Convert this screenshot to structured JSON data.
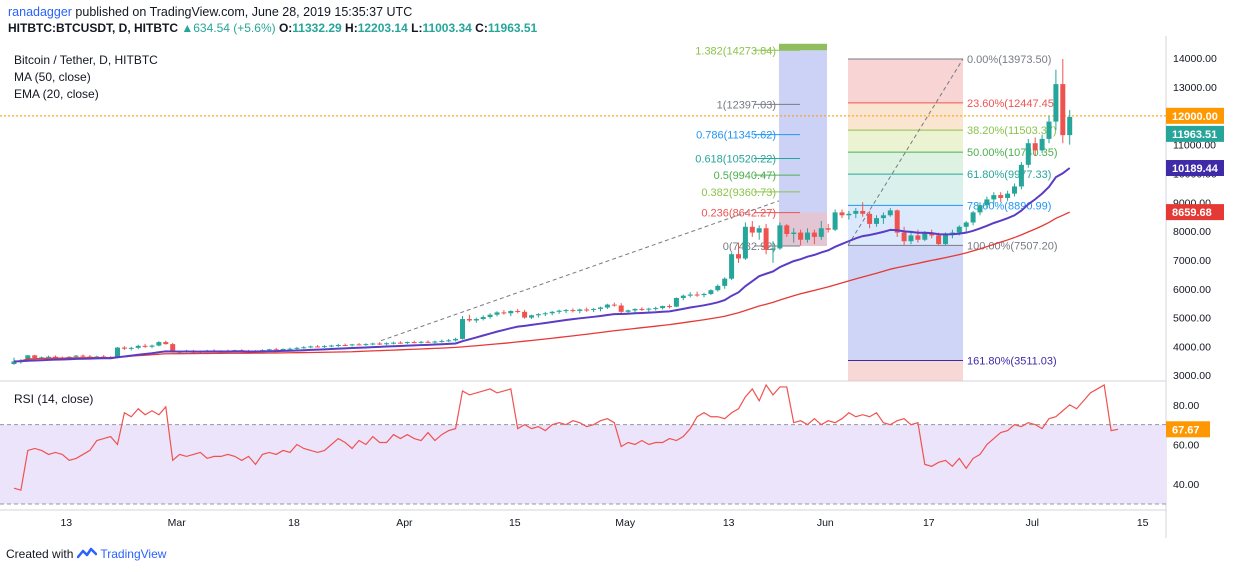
{
  "header": {
    "author": "ranadagger",
    "published": " published on TradingView.com, June 28, 2019 15:35:37 UTC",
    "symbol": "HITBTC:BTCUSDT, D, HITBTC",
    "change": "634.54 (+5.6%)",
    "o_label": "O:",
    "o_value": "11332.29",
    "h_label": "H:",
    "h_value": "12203.14",
    "l_label": "L:",
    "l_value": "11003.34",
    "c_label": "C:",
    "c_value": "11963.51"
  },
  "footer": {
    "created_with": "Created with",
    "brand": "TradingView"
  },
  "colors": {
    "up": "#26a69a",
    "down": "#ef5350",
    "ma50": "#e53935",
    "ema20": "#5b3cc4",
    "rsi": "#ef5350",
    "rsi_band": "#ece4fb",
    "price_line": "#ff9800",
    "fib_up_bg": "#b9c3f2",
    "fib_down_bg": "#f4bdbd"
  },
  "chart_data": [
    {
      "type": "candlestick",
      "title": "Bitcoin / Tether, D, HITBTC",
      "indicators": [
        "MA (50, close)",
        "EMA (20, close)"
      ],
      "x_ticks": [
        "13",
        "Mar",
        "18",
        "Apr",
        "15",
        "May",
        "13",
        "Jun",
        "17",
        "Jul",
        "15"
      ],
      "y_ticks": [
        "14000.00",
        "13000.00",
        "12000.00",
        "11000.00",
        "10000.00",
        "9000.00",
        "8000.00",
        "7000.00",
        "6000.00",
        "5000.00",
        "4000.00",
        "3000.00"
      ],
      "ylim": [
        2800,
        14700
      ],
      "price_labels": [
        {
          "text": "12000.00",
          "value": 12000,
          "color": "#ff9800"
        },
        {
          "text": "11963.51",
          "value": 11963.51,
          "color": "#26a69a"
        },
        {
          "text": "10189.44",
          "value": 10189.44,
          "color": "#3f2aa8"
        },
        {
          "text": "8659.68",
          "value": 8659.68,
          "color": "#e53935"
        }
      ],
      "ohlc": [
        [
          3390,
          3610,
          3360,
          3480
        ],
        [
          3480,
          3560,
          3400,
          3520
        ],
        [
          3520,
          3700,
          3500,
          3690
        ],
        [
          3690,
          3710,
          3570,
          3600
        ],
        [
          3600,
          3650,
          3550,
          3620
        ],
        [
          3620,
          3680,
          3580,
          3640
        ],
        [
          3640,
          3690,
          3590,
          3610
        ],
        [
          3610,
          3650,
          3560,
          3600
        ],
        [
          3600,
          3660,
          3580,
          3640
        ],
        [
          3640,
          3700,
          3600,
          3680
        ],
        [
          3680,
          3720,
          3620,
          3650
        ],
        [
          3650,
          3700,
          3600,
          3630
        ],
        [
          3630,
          3680,
          3590,
          3650
        ],
        [
          3650,
          3700,
          3600,
          3620
        ],
        [
          3620,
          3660,
          3560,
          3600
        ],
        [
          3600,
          3980,
          3590,
          3960
        ],
        [
          3960,
          4010,
          3880,
          3920
        ],
        [
          3920,
          3990,
          3860,
          3950
        ],
        [
          3950,
          4060,
          3900,
          4020
        ],
        [
          4020,
          4090,
          3950,
          3990
        ],
        [
          3990,
          4060,
          3940,
          4030
        ],
        [
          4030,
          4180,
          4000,
          4150
        ],
        [
          4150,
          4200,
          4060,
          4080
        ],
        [
          4080,
          4120,
          3780,
          3790
        ],
        [
          3790,
          3860,
          3740,
          3820
        ],
        [
          3820,
          3880,
          3780,
          3850
        ],
        [
          3850,
          3880,
          3770,
          3800
        ],
        [
          3800,
          3860,
          3760,
          3830
        ],
        [
          3830,
          3880,
          3790,
          3860
        ],
        [
          3860,
          3900,
          3800,
          3820
        ],
        [
          3820,
          3870,
          3780,
          3850
        ],
        [
          3850,
          3890,
          3800,
          3830
        ],
        [
          3830,
          3880,
          3790,
          3870
        ],
        [
          3870,
          3900,
          3820,
          3840
        ],
        [
          3840,
          3880,
          3780,
          3800
        ],
        [
          3800,
          3870,
          3760,
          3850
        ],
        [
          3850,
          3900,
          3810,
          3870
        ],
        [
          3870,
          3920,
          3830,
          3900
        ],
        [
          3900,
          3950,
          3860,
          3880
        ],
        [
          3880,
          3930,
          3850,
          3910
        ],
        [
          3910,
          3960,
          3870,
          3920
        ],
        [
          3920,
          3980,
          3890,
          3950
        ],
        [
          3950,
          4010,
          3920,
          3970
        ],
        [
          3970,
          4030,
          3940,
          4000
        ],
        [
          4000,
          4050,
          3960,
          3990
        ],
        [
          3990,
          4040,
          3950,
          4010
        ],
        [
          4010,
          4060,
          3970,
          4030
        ],
        [
          4030,
          4090,
          3980,
          4050
        ],
        [
          4050,
          4100,
          4010,
          4040
        ],
        [
          4040,
          4090,
          4000,
          4070
        ],
        [
          4070,
          4120,
          4030,
          4060
        ],
        [
          4060,
          4110,
          4020,
          4080
        ],
        [
          4080,
          4130,
          4040,
          4100
        ],
        [
          4100,
          4150,
          4050,
          4090
        ],
        [
          4090,
          4140,
          4040,
          4110
        ],
        [
          4110,
          4160,
          4070,
          4130
        ],
        [
          4130,
          4180,
          4090,
          4120
        ],
        [
          4120,
          4170,
          4080,
          4150
        ],
        [
          4150,
          4200,
          4110,
          4140
        ],
        [
          4140,
          4190,
          4100,
          4160
        ],
        [
          4160,
          4210,
          4120,
          4150
        ],
        [
          4150,
          4200,
          4110,
          4170
        ],
        [
          4170,
          4240,
          4130,
          4190
        ],
        [
          4190,
          4260,
          4150,
          4210
        ],
        [
          4210,
          4300,
          4170,
          4260
        ],
        [
          4260,
          5050,
          4240,
          4950
        ],
        [
          4950,
          5100,
          4850,
          4900
        ],
        [
          4900,
          5000,
          4820,
          4950
        ],
        [
          4950,
          5080,
          4900,
          5020
        ],
        [
          5020,
          5150,
          4960,
          5100
        ],
        [
          5100,
          5220,
          5040,
          5180
        ],
        [
          5180,
          5260,
          5100,
          5150
        ],
        [
          5150,
          5250,
          5050,
          5230
        ],
        [
          5230,
          5300,
          5150,
          5200
        ],
        [
          5200,
          5270,
          4960,
          5000
        ],
        [
          5000,
          5100,
          4950,
          5080
        ],
        [
          5080,
          5150,
          5000,
          5120
        ],
        [
          5120,
          5200,
          5050,
          5150
        ],
        [
          5150,
          5230,
          5080,
          5200
        ],
        [
          5200,
          5280,
          5130,
          5240
        ],
        [
          5240,
          5300,
          5160,
          5260
        ],
        [
          5260,
          5320,
          5180,
          5230
        ],
        [
          5230,
          5310,
          5150,
          5280
        ],
        [
          5280,
          5350,
          5200,
          5270
        ],
        [
          5270,
          5330,
          5190,
          5300
        ],
        [
          5300,
          5380,
          5220,
          5350
        ],
        [
          5350,
          5480,
          5300,
          5450
        ],
        [
          5450,
          5520,
          5380,
          5420
        ],
        [
          5420,
          5500,
          5150,
          5200
        ],
        [
          5200,
          5280,
          5120,
          5250
        ],
        [
          5250,
          5320,
          5180,
          5300
        ],
        [
          5300,
          5360,
          5230,
          5280
        ],
        [
          5280,
          5340,
          5200,
          5310
        ],
        [
          5310,
          5380,
          5240,
          5330
        ],
        [
          5330,
          5420,
          5280,
          5400
        ],
        [
          5400,
          5460,
          5320,
          5380
        ],
        [
          5380,
          5700,
          5360,
          5680
        ],
        [
          5680,
          5800,
          5600,
          5760
        ],
        [
          5760,
          5880,
          5700,
          5800
        ],
        [
          5800,
          5900,
          5720,
          5780
        ],
        [
          5780,
          5860,
          5700,
          5820
        ],
        [
          5820,
          5980,
          5780,
          5950
        ],
        [
          5950,
          6150,
          5900,
          6100
        ],
        [
          6100,
          6400,
          6000,
          6350
        ],
        [
          6350,
          7250,
          6300,
          7200
        ],
        [
          7200,
          7600,
          6900,
          7050
        ],
        [
          7050,
          8300,
          7000,
          8150
        ],
        [
          8150,
          8350,
          7800,
          7950
        ],
        [
          7950,
          8200,
          7700,
          8100
        ],
        [
          8100,
          8250,
          7200,
          7350
        ],
        [
          7350,
          7650,
          6900,
          7400
        ],
        [
          7400,
          8300,
          7350,
          8200
        ],
        [
          8200,
          8250,
          7800,
          7900
        ],
        [
          7900,
          8100,
          7600,
          7950
        ],
        [
          7950,
          8050,
          7500,
          7700
        ],
        [
          7700,
          8100,
          7600,
          7950
        ],
        [
          7950,
          8050,
          7550,
          7800
        ],
        [
          7800,
          8350,
          7700,
          8100
        ],
        [
          8100,
          8250,
          7950,
          8050
        ],
        [
          8050,
          8750,
          8000,
          8650
        ],
        [
          8650,
          8750,
          8450,
          8550
        ],
        [
          8550,
          8700,
          8400,
          8600
        ],
        [
          8600,
          8800,
          8450,
          8700
        ],
        [
          8700,
          9000,
          8500,
          8600
        ],
        [
          8600,
          8700,
          8100,
          8250
        ],
        [
          8250,
          8550,
          8150,
          8450
        ],
        [
          8450,
          8650,
          8250,
          8550
        ],
        [
          8550,
          8800,
          8500,
          8720
        ],
        [
          8720,
          8750,
          7800,
          7950
        ],
        [
          7950,
          8150,
          7500,
          7650
        ],
        [
          7650,
          7950,
          7550,
          7850
        ],
        [
          7850,
          8050,
          7600,
          7700
        ],
        [
          7700,
          8000,
          7650,
          7950
        ],
        [
          7950,
          8050,
          7750,
          7850
        ],
        [
          7850,
          7950,
          7500,
          7550
        ],
        [
          7550,
          7950,
          7500,
          7900
        ],
        [
          7900,
          8050,
          7750,
          7950
        ],
        [
          7950,
          8200,
          7850,
          8150
        ],
        [
          8150,
          8350,
          7950,
          8300
        ],
        [
          8300,
          8700,
          8200,
          8650
        ],
        [
          8650,
          9000,
          8550,
          8900
        ],
        [
          8900,
          9200,
          8800,
          9100
        ],
        [
          9100,
          9350,
          8950,
          9250
        ],
        [
          9250,
          9350,
          9000,
          9150
        ],
        [
          9150,
          9400,
          9050,
          9300
        ],
        [
          9300,
          9650,
          9200,
          9550
        ],
        [
          9550,
          10400,
          9450,
          10300
        ],
        [
          10300,
          11200,
          10200,
          11050
        ],
        [
          11050,
          11250,
          10600,
          10800
        ],
        [
          10800,
          11350,
          10700,
          11200
        ],
        [
          11200,
          12000,
          11050,
          11800
        ],
        [
          11800,
          13600,
          11500,
          13100
        ],
        [
          13100,
          13970,
          11050,
          11330
        ],
        [
          11330,
          12200,
          11000,
          11963.51
        ]
      ],
      "ma50_end": 8659.68,
      "ema20_end": 10189.44,
      "fib_left": {
        "levels": [
          {
            "label": "1.382(14273.84)",
            "value": 14273.84,
            "color": "#8bc34a"
          },
          {
            "label": "1(12397.03)",
            "value": 12397.03,
            "color": "#787b86"
          },
          {
            "label": "0.786(11345.62)",
            "value": 11345.62,
            "color": "#2196f3"
          },
          {
            "label": "0.618(10520.22)",
            "value": 10520.22,
            "color": "#26a69a"
          },
          {
            "label": "0.5(9940.47)",
            "value": 9940.47,
            "color": "#4caf50"
          },
          {
            "label": "0.382(9360.73)",
            "value": 9360.73,
            "color": "#8bc34a"
          },
          {
            "label": "0.236(8642.27)",
            "value": 8642.27,
            "color": "#ef5350"
          },
          {
            "label": "0(7482.92)",
            "value": 7482.92,
            "color": "#787b86"
          }
        ]
      },
      "fib_right": {
        "levels": [
          {
            "label": "0.00%(13973.50)",
            "value": 13973.5,
            "color": "#787b86"
          },
          {
            "label": "23.60%(12447.45)",
            "value": 12447.45,
            "color": "#ef5350"
          },
          {
            "label": "38.20%(11503.37)",
            "value": 11503.37,
            "color": "#8bc34a"
          },
          {
            "label": "50.00%(10740.35)",
            "value": 10740.35,
            "color": "#4caf50"
          },
          {
            "label": "61.80%(9977.33)",
            "value": 9977.33,
            "color": "#26a69a"
          },
          {
            "label": "78.60%(8890.99)",
            "value": 8890.99,
            "color": "#2196f3"
          },
          {
            "label": "100.00%(7507.20)",
            "value": 7507.2,
            "color": "#787b86"
          },
          {
            "label": "161.80%(3511.03)",
            "value": 3511.03,
            "color": "#3f2aa8"
          }
        ]
      }
    },
    {
      "type": "line",
      "title": "RSI (14, close)",
      "ylim": [
        28,
        92
      ],
      "y_ticks": [
        "80.00",
        "60.00",
        "40.00"
      ],
      "bands": [
        70,
        30
      ],
      "last_label": "67.67",
      "values": [
        38,
        37,
        57,
        58,
        57,
        55,
        56,
        55,
        52,
        53,
        55,
        57,
        62,
        63,
        64,
        60,
        76,
        74,
        78,
        75,
        77,
        75,
        79,
        52,
        55,
        54,
        55,
        56,
        53,
        54,
        54,
        55,
        54,
        52,
        54,
        50,
        55,
        56,
        55,
        57,
        56,
        60,
        58,
        57,
        56,
        57,
        60,
        63,
        61,
        58,
        62,
        60,
        64,
        61,
        61,
        65,
        63,
        65,
        63,
        62,
        66,
        62,
        65,
        67,
        68,
        87,
        85,
        86,
        87,
        88,
        86,
        87,
        88,
        68,
        70,
        68,
        69,
        67,
        70,
        71,
        70,
        72,
        71,
        69,
        70,
        72,
        73,
        71,
        59,
        61,
        60,
        62,
        60,
        61,
        61,
        63,
        62,
        64,
        68,
        74,
        76,
        74,
        74,
        73,
        76,
        78,
        84,
        88,
        82,
        90,
        85,
        89,
        89,
        71,
        72,
        70,
        73,
        70,
        72,
        71,
        73,
        76,
        74,
        75,
        74,
        76,
        71,
        70,
        72,
        73,
        70,
        71,
        50,
        49,
        51,
        52,
        49,
        53,
        48,
        53,
        55,
        60,
        63,
        66,
        67,
        70,
        69,
        71,
        70,
        68,
        73,
        74,
        77,
        80,
        78,
        82,
        86,
        88,
        90,
        67,
        67.67
      ]
    }
  ]
}
